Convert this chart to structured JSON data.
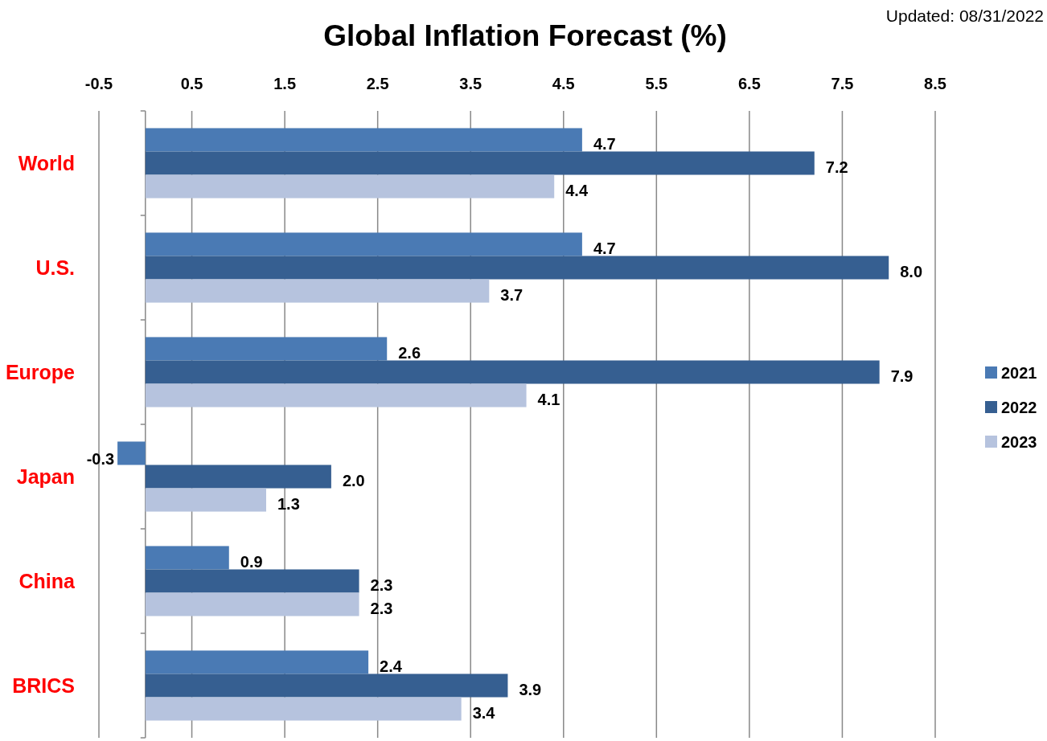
{
  "chart_data": {
    "type": "bar",
    "orientation": "horizontal",
    "title": "Global Inflation Forecast (%)",
    "annotations": [
      "Updated: 08/31/2022"
    ],
    "categories": [
      "World",
      "U.S.",
      "Europe",
      "Japan",
      "China",
      "BRICS"
    ],
    "series": [
      {
        "name": "2021",
        "color": "#4a7ab4",
        "values": [
          4.7,
          4.7,
          2.6,
          -0.3,
          0.9,
          2.4
        ],
        "value_labels": [
          "4.7",
          "4.7",
          "2.6",
          "-0.3",
          "0.9",
          "2.4"
        ]
      },
      {
        "name": "2022",
        "color": "#365f91",
        "values": [
          7.2,
          8.0,
          7.9,
          2.0,
          2.3,
          3.9
        ],
        "value_labels": [
          "7.2",
          "8.0",
          "7.9",
          "2.0",
          "2.3",
          "3.9"
        ]
      },
      {
        "name": "2023",
        "color": "#b6c3de",
        "values": [
          4.4,
          3.7,
          4.1,
          1.3,
          2.3,
          3.4
        ],
        "value_labels": [
          "4.4",
          "3.7",
          "4.1",
          "1.3",
          "2.3",
          "3.4"
        ]
      }
    ],
    "xlim": [
      -0.5,
      8.5
    ],
    "xticks": [
      -0.5,
      0.5,
      1.5,
      2.5,
      3.5,
      4.5,
      5.5,
      6.5,
      7.5,
      8.5
    ],
    "grid": "x",
    "legend": "right"
  }
}
